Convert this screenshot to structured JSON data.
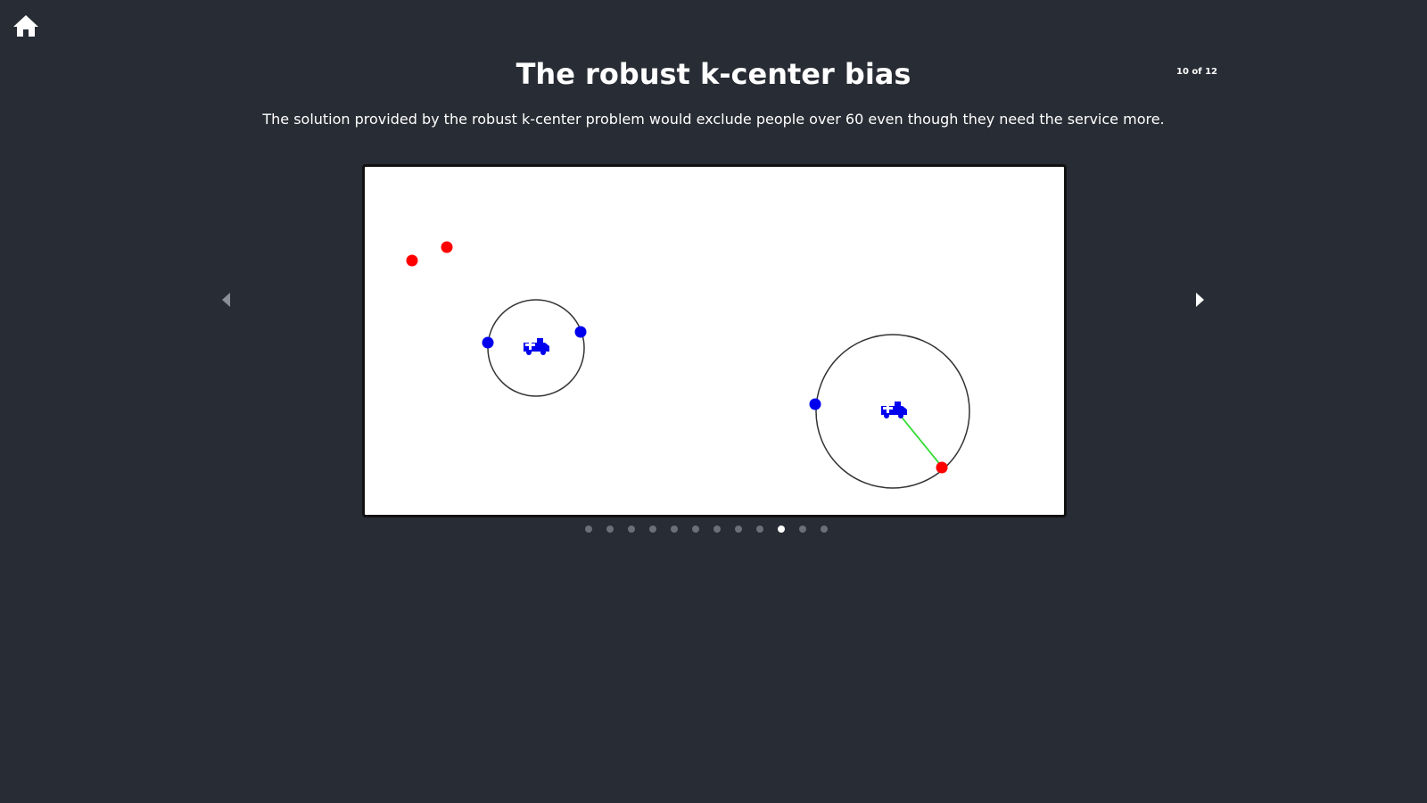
{
  "header": {
    "home_icon": "home-icon",
    "title": "The robust k-center bias",
    "subtitle": "The solution provided by the robust k-center problem would exclude people over 60 even though they need the service more.",
    "counter": "10 of 12"
  },
  "navigation": {
    "prev_icon": "triangle-left-icon",
    "next_icon": "triangle-right-icon",
    "total_slides": 12,
    "current_slide": 10
  },
  "colors": {
    "background": "#282c34",
    "canvas": "#ffffff",
    "over_60_point": "#ff0000",
    "under_60_point": "#0000ff",
    "center_icon": "#0000ff",
    "distance_line": "#33dd33",
    "cluster_circle": "#333333"
  },
  "scene": {
    "icon": "ambulance-icon"
  }
}
